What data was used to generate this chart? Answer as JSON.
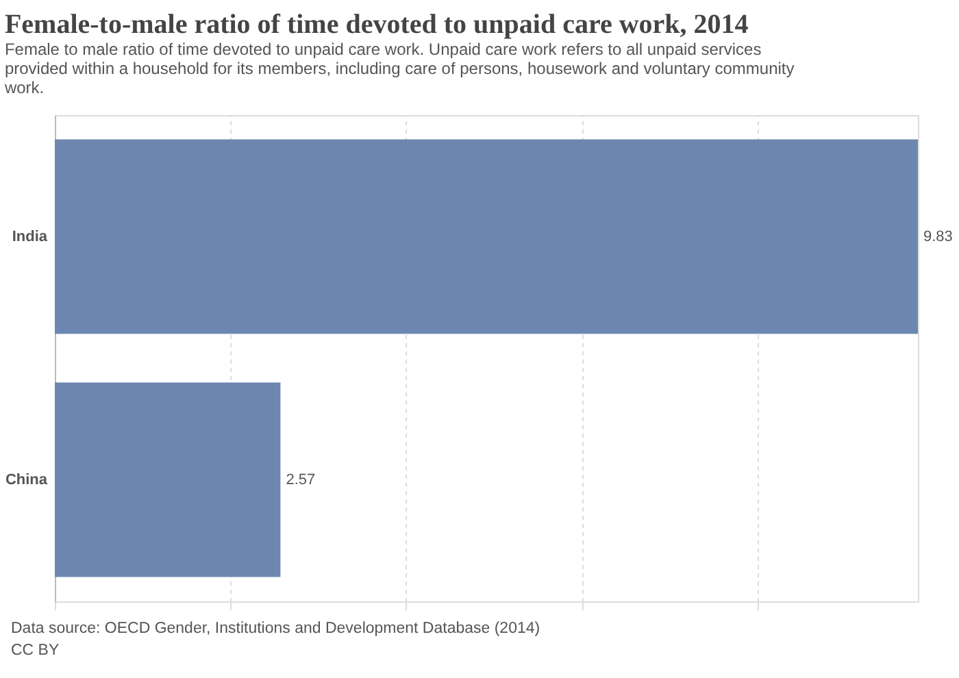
{
  "chart_data": {
    "type": "bar",
    "orientation": "horizontal",
    "title": "Female-to-male ratio of time devoted to unpaid care work, 2014",
    "subtitle": "Female to male ratio of time devoted to unpaid care work. Unpaid care work refers to all unpaid services provided within a household for its members, including care of persons, housework and voluntary community work.",
    "categories": [
      "India",
      "China"
    ],
    "values": [
      9.83,
      2.57
    ],
    "color": "#6d87b0",
    "xlim": [
      0,
      9.83
    ],
    "xticks": [
      {
        "value": 0,
        "label": null
      },
      {
        "value": 2,
        "label": null
      },
      {
        "value": 4,
        "label": null
      },
      {
        "value": 6,
        "label": null
      },
      {
        "value": 8,
        "label": null
      }
    ],
    "grid": "x",
    "tick_labels": "y",
    "data_labels": true,
    "annotations": [
      "Data source: OECD Gender, Institutions and Development Database (2014)",
      "CC BY"
    ]
  }
}
